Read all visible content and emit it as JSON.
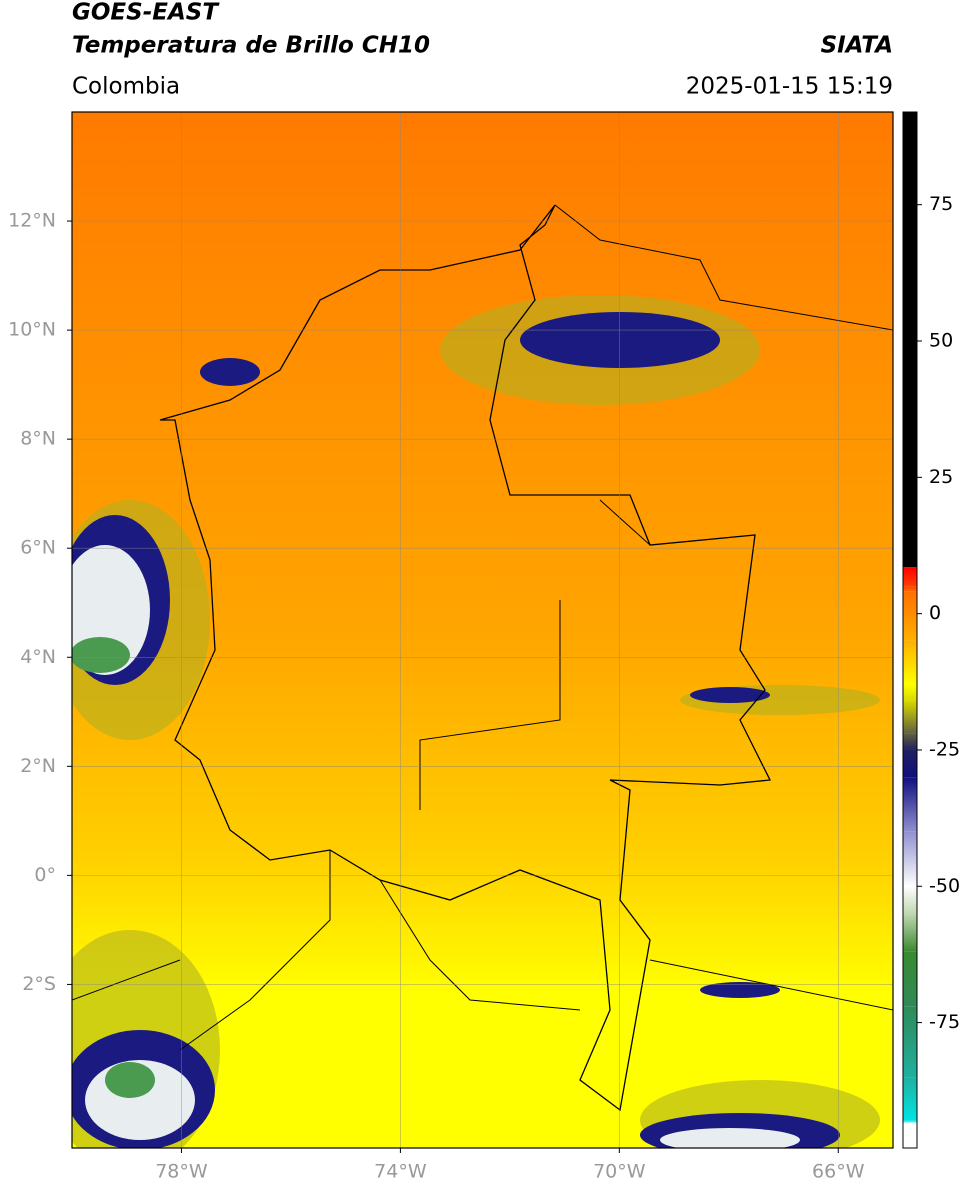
{
  "header": {
    "satellite": "GOES-EAST",
    "product": "Temperatura de Brillo CH10",
    "agency": "SIATA",
    "region": "Colombia",
    "timestamp": "2025-01-15 15:19"
  },
  "map": {
    "lonlim": [
      -80,
      -65
    ],
    "latlim": [
      -5,
      14
    ],
    "lon_ticks": [
      {
        "value": -78,
        "label": "78°W"
      },
      {
        "value": -74,
        "label": "74°W"
      },
      {
        "value": -70,
        "label": "70°W"
      },
      {
        "value": -66,
        "label": "66°W"
      }
    ],
    "lat_ticks": [
      {
        "value": 12,
        "label": "12°N"
      },
      {
        "value": 10,
        "label": "10°N"
      },
      {
        "value": 8,
        "label": "8°N"
      },
      {
        "value": 6,
        "label": "6°N"
      },
      {
        "value": 4,
        "label": "4°N"
      },
      {
        "value": 2,
        "label": "2°N"
      },
      {
        "value": 0,
        "label": "0°"
      },
      {
        "value": -2,
        "label": "2°S"
      }
    ]
  },
  "colorbar": {
    "lim": [
      -98,
      92
    ],
    "ticks": [
      75,
      50,
      25,
      0,
      -25,
      -50,
      -75
    ],
    "stops": [
      {
        "value": -98,
        "color": "#ffffff"
      },
      {
        "value": -93.5,
        "color": "#ffffff"
      },
      {
        "value": -93,
        "color": "#00e5e5"
      },
      {
        "value": -85,
        "color": "#20b0a0"
      },
      {
        "value": -72,
        "color": "#2e8b57"
      },
      {
        "value": -62,
        "color": "#3a8a30"
      },
      {
        "value": -55,
        "color": "#c0d8b0"
      },
      {
        "value": -50,
        "color": "#ffffff"
      },
      {
        "value": -40,
        "color": "#9090d0"
      },
      {
        "value": -30,
        "color": "#101080"
      },
      {
        "value": -25,
        "color": "#202060"
      },
      {
        "value": -22,
        "color": "#606040"
      },
      {
        "value": -16,
        "color": "#d8d800"
      },
      {
        "value": -13,
        "color": "#ffff00"
      },
      {
        "value": -5,
        "color": "#ffb000"
      },
      {
        "value": 4,
        "color": "#ff7000"
      },
      {
        "value": 5,
        "color": "#ff4000"
      },
      {
        "value": 8.4,
        "color": "#ff0000"
      },
      {
        "value": 8.5,
        "color": "#000000"
      },
      {
        "value": 92,
        "color": "#000000"
      }
    ]
  }
}
